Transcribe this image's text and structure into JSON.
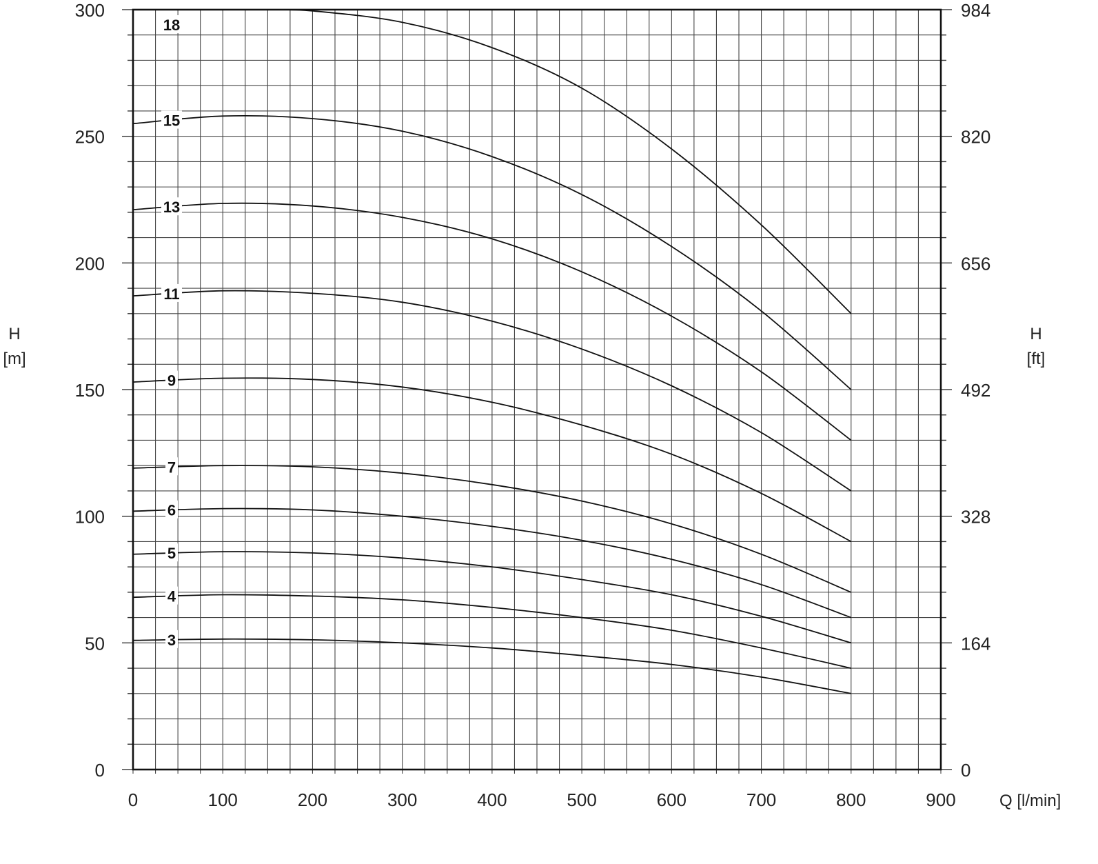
{
  "chart_data": {
    "type": "line",
    "title": "",
    "xlabel": "Q [l/min]",
    "ylabel_left": {
      "symbol": "H",
      "unit": "[m]"
    },
    "ylabel_right": {
      "symbol": "H",
      "unit": "[ft]"
    },
    "xlim": [
      0,
      900
    ],
    "ylim": [
      0,
      300
    ],
    "grid": true,
    "x_ticks": [
      {
        "value": 0,
        "label": "0"
      },
      {
        "value": 100,
        "label": "100"
      },
      {
        "value": 200,
        "label": "200"
      },
      {
        "value": 300,
        "label": "300"
      },
      {
        "value": 400,
        "label": "400"
      },
      {
        "value": 500,
        "label": "500"
      },
      {
        "value": 600,
        "label": "600"
      },
      {
        "value": 700,
        "label": "700"
      },
      {
        "value": 800,
        "label": "800"
      },
      {
        "value": 900,
        "label": "900"
      }
    ],
    "y_ticks_left": [
      {
        "value": 0,
        "label": "0"
      },
      {
        "value": 50,
        "label": "50"
      },
      {
        "value": 100,
        "label": "100"
      },
      {
        "value": 150,
        "label": "150"
      },
      {
        "value": 200,
        "label": "200"
      },
      {
        "value": 250,
        "label": "250"
      },
      {
        "value": 300,
        "label": "300"
      }
    ],
    "y_ticks_right": [
      {
        "value": 0,
        "label": "0"
      },
      {
        "value": 50,
        "label": "164"
      },
      {
        "value": 100,
        "label": "328"
      },
      {
        "value": 150,
        "label": "492"
      },
      {
        "value": 200,
        "label": "656"
      },
      {
        "value": 250,
        "label": "820"
      },
      {
        "value": 300,
        "label": "984"
      }
    ],
    "series": [
      {
        "name": "3",
        "x": [
          0,
          100,
          200,
          300,
          400,
          500,
          600,
          700,
          800
        ],
        "y": [
          51,
          51.5,
          51.2,
          50,
          48,
          45,
          41.5,
          36.5,
          30
        ]
      },
      {
        "name": "4",
        "x": [
          0,
          100,
          200,
          300,
          400,
          500,
          600,
          700,
          800
        ],
        "y": [
          68,
          69,
          68.5,
          67,
          64,
          60,
          55,
          48,
          40
        ]
      },
      {
        "name": "5",
        "x": [
          0,
          100,
          200,
          300,
          400,
          500,
          600,
          700,
          800
        ],
        "y": [
          85,
          86,
          85.5,
          83.5,
          80,
          75,
          69,
          60.5,
          50
        ]
      },
      {
        "name": "6",
        "x": [
          0,
          100,
          200,
          300,
          400,
          500,
          600,
          700,
          800
        ],
        "y": [
          102,
          103,
          102.5,
          100,
          96,
          90.5,
          83,
          73,
          60
        ]
      },
      {
        "name": "7",
        "x": [
          0,
          100,
          200,
          300,
          400,
          500,
          600,
          700,
          800
        ],
        "y": [
          119,
          120,
          119.5,
          117,
          112.5,
          106,
          97,
          85,
          70
        ]
      },
      {
        "name": "9",
        "x": [
          0,
          100,
          200,
          300,
          400,
          500,
          600,
          700,
          800
        ],
        "y": [
          153,
          154.5,
          154,
          151,
          145,
          136,
          124.5,
          109,
          90
        ]
      },
      {
        "name": "11",
        "x": [
          0,
          100,
          200,
          300,
          400,
          500,
          600,
          700,
          800
        ],
        "y": [
          187,
          189,
          188,
          184.5,
          177,
          166,
          151.5,
          133,
          110
        ]
      },
      {
        "name": "13",
        "x": [
          0,
          100,
          200,
          300,
          400,
          500,
          600,
          700,
          800
        ],
        "y": [
          221,
          223.5,
          222.5,
          218,
          209.5,
          196.5,
          179,
          157,
          130
        ]
      },
      {
        "name": "15",
        "x": [
          0,
          100,
          200,
          300,
          400,
          500,
          600,
          700,
          800
        ],
        "y": [
          255,
          258,
          257,
          252,
          242,
          227,
          206.5,
          181,
          150
        ]
      },
      {
        "name": "18",
        "x": [
          150,
          200,
          300,
          400,
          500,
          600,
          700,
          800
        ],
        "y": [
          300,
          299.5,
          295,
          285,
          269,
          245,
          215,
          180
        ]
      }
    ],
    "curve_label_x": 43
  }
}
